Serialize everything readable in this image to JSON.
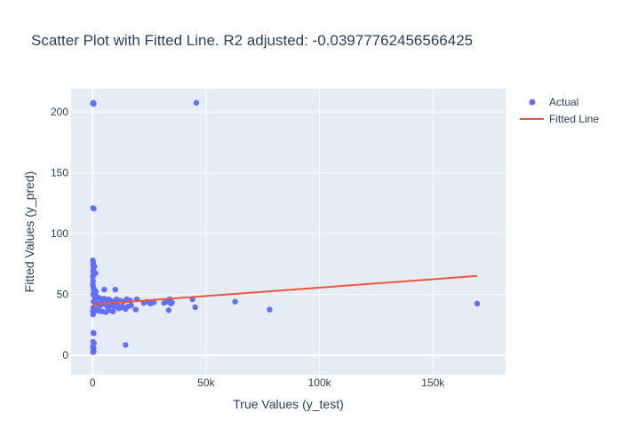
{
  "chart_data": {
    "type": "scatter",
    "title": "Scatter Plot with Fitted Line. R2 adjusted: -0.03977762456566425",
    "xlabel": "True Values (y_test)",
    "ylabel": "Fitted Values (y_pred)",
    "xlim": [
      -9500,
      182000
    ],
    "ylim": [
      -16,
      219
    ],
    "x_ticks": [
      {
        "value": 0,
        "label": "0"
      },
      {
        "value": 50000,
        "label": "50k"
      },
      {
        "value": 100000,
        "label": "100k"
      },
      {
        "value": 150000,
        "label": "150k"
      }
    ],
    "y_ticks": [
      {
        "value": 0,
        "label": "0"
      },
      {
        "value": 50,
        "label": "50"
      },
      {
        "value": 100,
        "label": "100"
      },
      {
        "value": 150,
        "label": "150"
      },
      {
        "value": 200,
        "label": "200"
      }
    ],
    "grid": true,
    "legend_position": "top-right",
    "series": [
      {
        "name": "Actual",
        "mode": "markers",
        "color": "#636efa",
        "points": [
          [
            100,
            207
          ],
          [
            300,
            207.5
          ],
          [
            500,
            206.5
          ],
          [
            45700,
            207.5
          ],
          [
            200,
            121
          ],
          [
            500,
            120.5
          ],
          [
            100,
            78
          ],
          [
            300,
            76
          ],
          [
            150,
            74
          ],
          [
            800,
            73
          ],
          [
            400,
            71
          ],
          [
            200,
            69
          ],
          [
            1300,
            67.5
          ],
          [
            300,
            66
          ],
          [
            100,
            64.5
          ],
          [
            200,
            61
          ],
          [
            100,
            58
          ],
          [
            300,
            56
          ],
          [
            500,
            54
          ],
          [
            900,
            53.5
          ],
          [
            1400,
            52
          ],
          [
            5100,
            54
          ],
          [
            10000,
            54
          ],
          [
            200,
            50
          ],
          [
            600,
            49
          ],
          [
            1100,
            47
          ],
          [
            2000,
            48
          ],
          [
            3000,
            47
          ],
          [
            4000,
            45
          ],
          [
            5000,
            46.5
          ],
          [
            6000,
            44
          ],
          [
            7000,
            46
          ],
          [
            8000,
            45
          ],
          [
            9000,
            43.5
          ],
          [
            10500,
            46
          ],
          [
            12000,
            45
          ],
          [
            13500,
            44
          ],
          [
            15000,
            46
          ],
          [
            16500,
            45
          ],
          [
            19500,
            46
          ],
          [
            400,
            44
          ],
          [
            1600,
            43
          ],
          [
            2500,
            42
          ],
          [
            3500,
            41
          ],
          [
            4500,
            43
          ],
          [
            5500,
            42
          ],
          [
            6500,
            40
          ],
          [
            7500,
            41
          ],
          [
            8500,
            42
          ],
          [
            9500,
            40
          ],
          [
            11000,
            41
          ],
          [
            12500,
            40
          ],
          [
            14000,
            39
          ],
          [
            15500,
            40
          ],
          [
            17000,
            41
          ],
          [
            300,
            39
          ],
          [
            900,
            38
          ],
          [
            1700,
            37.5
          ],
          [
            2800,
            36.5
          ],
          [
            4200,
            36
          ],
          [
            5800,
            35.5
          ],
          [
            7300,
            37
          ],
          [
            9000,
            36
          ],
          [
            11500,
            38.5
          ],
          [
            13000,
            39.5
          ],
          [
            14500,
            38
          ],
          [
            19000,
            37.5
          ],
          [
            100,
            36
          ],
          [
            500,
            35
          ],
          [
            200,
            33.5
          ],
          [
            22500,
            43
          ],
          [
            24000,
            44
          ],
          [
            25500,
            42.5
          ],
          [
            27000,
            43.5
          ],
          [
            31500,
            43
          ],
          [
            33000,
            44
          ],
          [
            34000,
            46
          ],
          [
            34500,
            42.5
          ],
          [
            33500,
            37
          ],
          [
            35000,
            43.5
          ],
          [
            44000,
            46
          ],
          [
            45200,
            39.5
          ],
          [
            62800,
            44
          ],
          [
            78000,
            37.5
          ],
          [
            169500,
            42.5
          ],
          [
            14500,
            8.5
          ],
          [
            300,
            18.5
          ],
          [
            500,
            18
          ],
          [
            200,
            11
          ],
          [
            600,
            10
          ],
          [
            100,
            7
          ],
          [
            400,
            6
          ],
          [
            300,
            4
          ],
          [
            500,
            3
          ],
          [
            150,
            2.5
          ]
        ]
      },
      {
        "name": "Fitted Line",
        "mode": "lines",
        "color": "#ef553b",
        "points": [
          [
            0,
            41.8
          ],
          [
            169500,
            65.2
          ]
        ]
      }
    ]
  }
}
